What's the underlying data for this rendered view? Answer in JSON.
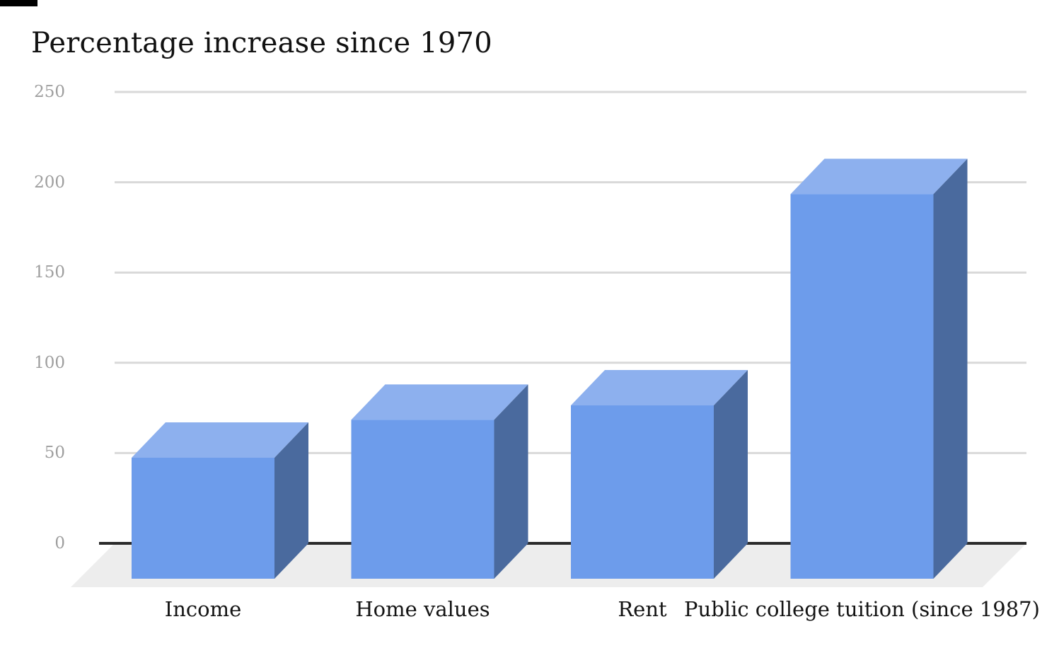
{
  "chart_data": {
    "type": "bar",
    "variant": "3d-column",
    "title": "Percentage increase since 1970",
    "categories": [
      "Income",
      "Home values",
      "Rent",
      "Public college tuition (since 1987)"
    ],
    "values": [
      67,
      88,
      96,
      213
    ],
    "series": [
      {
        "name": "Percentage increase",
        "values": [
          67,
          88,
          96,
          213
        ]
      }
    ],
    "xlabel": "",
    "ylabel": "",
    "ylim": [
      0,
      250
    ],
    "yticks": [
      0,
      50,
      100,
      150,
      200,
      250
    ],
    "grid": true,
    "legend_position": "none",
    "colors": {
      "bar_front": "#6d9ceb",
      "bar_top": "#8db0ee",
      "bar_side": "#4a6a9e",
      "gridline": "#d9d9d9",
      "baseline": "#2b2b2b",
      "floor": "#ededed",
      "tick_label": "#9e9e9e",
      "title": "#111111",
      "category_label": "#141414",
      "background": "#ffffff"
    }
  }
}
